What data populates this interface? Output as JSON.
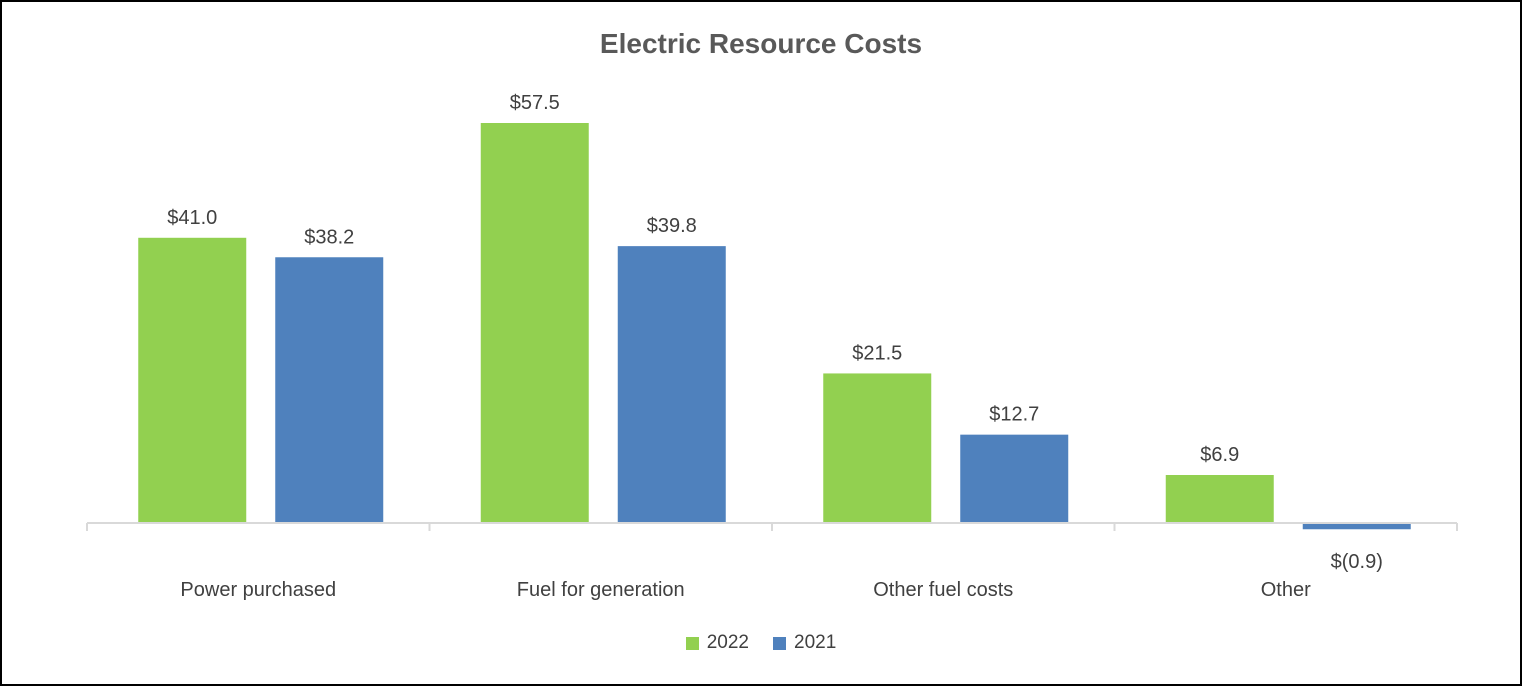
{
  "chart_data": {
    "type": "bar",
    "title": "Electric Resource Costs",
    "categories": [
      "Power purchased",
      "Fuel for generation",
      "Other fuel costs",
      "Other"
    ],
    "series": [
      {
        "name": "2022",
        "color": "#92D050",
        "values": [
          41.0,
          57.5,
          21.5,
          6.9
        ],
        "labels": [
          "$41.0",
          "$57.5",
          "$21.5",
          "$6.9"
        ]
      },
      {
        "name": "2021",
        "color": "#4F81BD",
        "values": [
          38.2,
          39.8,
          12.7,
          -0.9
        ],
        "labels": [
          "$38.2",
          "$39.8",
          "$12.7",
          "$(0.9)"
        ]
      }
    ],
    "xlabel": "",
    "ylabel": "",
    "ylim": [
      -1,
      57.5
    ],
    "grid": false,
    "legend": "bottom-center"
  }
}
